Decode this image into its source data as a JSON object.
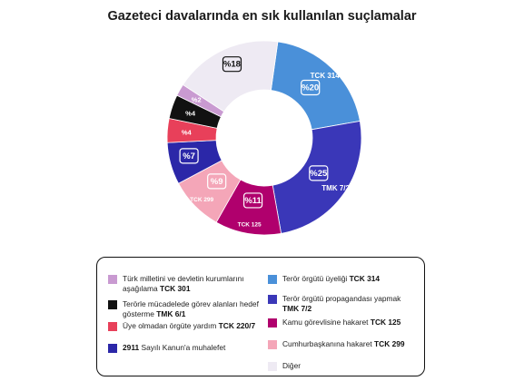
{
  "chart_data": {
    "type": "pie",
    "donut": true,
    "title": "Gazeteci davalarında en sık kullanılan suçlamalar",
    "slices": [
      {
        "label": "TCK 314",
        "value": 20,
        "value_label": "%20",
        "color": "#4a90d9",
        "text_color": "#ffffff",
        "code": "TCK 314"
      },
      {
        "label": "TMK 7/2",
        "value": 25,
        "value_label": "%25",
        "color": "#3a37b8",
        "text_color": "#ffffff",
        "code": "TMK 7/2"
      },
      {
        "label": "TCK 125",
        "value": 11,
        "value_label": "%11",
        "color": "#b0006d",
        "text_color": "#ffffff",
        "code": "TCK 125"
      },
      {
        "label": "TCK 299",
        "value": 9,
        "value_label": "%9",
        "color": "#f4a6b8",
        "text_color": "#ffffff",
        "code": "TCK 299"
      },
      {
        "label": "2911",
        "value": 7,
        "value_label": "%7",
        "color": "#2b27a8",
        "text_color": "#ffffff",
        "code": ""
      },
      {
        "label": "TCK 220/7",
        "value": 4,
        "value_label": "%4",
        "color": "#e8405a",
        "text_color": "#ffffff",
        "code": ""
      },
      {
        "label": "TMK 6/1",
        "value": 4,
        "value_label": "%4",
        "color": "#111111",
        "text_color": "#ffffff",
        "code": ""
      },
      {
        "label": "TCK 301",
        "value": 2,
        "value_label": "%2",
        "color": "#c99ad1",
        "text_color": "#ffffff",
        "code": ""
      },
      {
        "label": "Diğer",
        "value": 18,
        "value_label": "%18",
        "color": "#eeeaf3",
        "text_color": "#111111",
        "code": ""
      }
    ],
    "legend": [
      {
        "pre": "Türk milletini ve devletin kurumlarını aşağılama ",
        "bold": "TCK 301",
        "color": "#c99ad1"
      },
      {
        "pre": "Terörle mücadelede görev alanları hedef gösterme ",
        "bold": "TMK 6/1",
        "color": "#111111"
      },
      {
        "pre": "Üye olmadan örgüte yardım ",
        "bold": "TCK 220/7",
        "color": "#e8405a"
      },
      {
        "pre": "",
        "bold": "2911",
        "post": " Sayılı Kanun'a muhalefet",
        "color": "#2b27a8"
      },
      {
        "pre": "Terör örgütü üyeliği ",
        "bold": "TCK 314",
        "color": "#4a90d9"
      },
      {
        "pre": "Terör örgütü propagandası yapmak ",
        "bold": "TMK 7/2",
        "color": "#3a37b8"
      },
      {
        "pre": "Kamu görevlisine hakaret ",
        "bold": "TCK 125",
        "color": "#b0006d"
      },
      {
        "pre": "Cumhurbaşkanına hakaret ",
        "bold": "TCK 299",
        "color": "#f4a6b8"
      },
      {
        "pre": "Diğer",
        "bold": "",
        "color": "#eeeaf3"
      }
    ]
  }
}
